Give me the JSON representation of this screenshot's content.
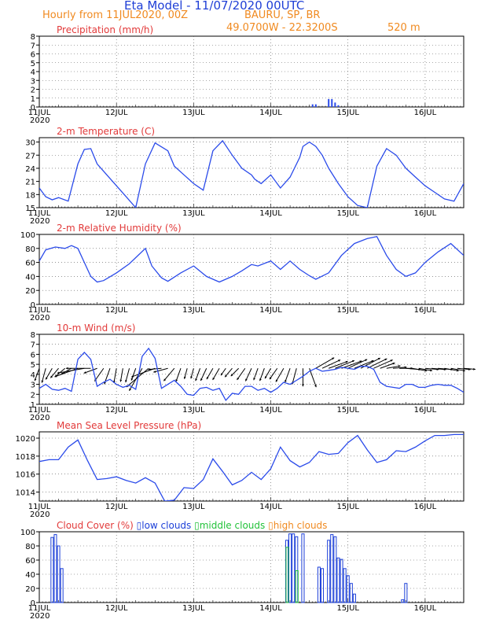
{
  "header": {
    "title": "Eta Model - 11/07/2020 00UTC",
    "subtitle": "Hourly from 11JUL2020, 00Z",
    "station": "BAURU, SP, BR",
    "coords": "49.0700W - 22.3200S",
    "elevation": "520 m"
  },
  "colors": {
    "line": "#2b4bea",
    "title_blue": "#1f3fd6",
    "panel_title": "#e23a3a",
    "orange": "#f08a20",
    "low": "#1c3fd8",
    "middle": "#23c23a",
    "high": "#f08a20"
  },
  "chart_data": [
    {
      "type": "bar",
      "title": "Precipitation (mm/h)",
      "x_ticks": [
        "11JUL",
        "12JUL",
        "13JUL",
        "14JUL",
        "15JUL",
        "16JUL"
      ],
      "x_year": "2020",
      "ylim": [
        0,
        8
      ],
      "yticks": [
        0,
        1,
        2,
        3,
        4,
        5,
        6,
        7,
        8
      ],
      "grid": true,
      "hour": [
        85,
        86,
        90,
        91,
        92,
        93
      ],
      "values": [
        0.3,
        0.3,
        0.9,
        0.9,
        0.5,
        0.2
      ]
    },
    {
      "type": "line",
      "title": "2-m Temperature (C)",
      "x_ticks": [
        "11JUL",
        "12JUL",
        "13JUL",
        "14JUL",
        "15JUL",
        "16JUL"
      ],
      "x_year": "2020",
      "ylim": [
        15,
        31
      ],
      "yticks": [
        15,
        18,
        21,
        24,
        27,
        30
      ],
      "grid": true,
      "hour": [
        0,
        2,
        4,
        6,
        9,
        12,
        14,
        16,
        18,
        21,
        24,
        27,
        30,
        33,
        36,
        40,
        42,
        45,
        48,
        51,
        54,
        57,
        60,
        63,
        66,
        67,
        69,
        72,
        75,
        78,
        81,
        82,
        84,
        86,
        88,
        90,
        93,
        96,
        99,
        102,
        105,
        108,
        111,
        114,
        117,
        120,
        123,
        126,
        129,
        132
      ],
      "values": [
        19.5,
        17.5,
        16.8,
        17.3,
        16.5,
        25,
        28.3,
        28.5,
        25,
        22.5,
        20,
        17.5,
        15,
        25,
        29.8,
        28,
        24.5,
        22.5,
        20.5,
        19,
        28,
        30.3,
        27,
        24,
        22.5,
        21.5,
        20.5,
        22.5,
        19.5,
        22,
        26.5,
        29,
        30,
        29,
        27,
        24,
        20.5,
        17.5,
        15.5,
        15,
        24.5,
        28.5,
        27,
        24,
        22,
        20,
        18.5,
        17,
        16.5,
        20.5
      ]
    },
    {
      "type": "line",
      "title": "2-m Relative Humidity (%)",
      "x_ticks": [
        "11JUL",
        "12JUL",
        "13JUL",
        "14JUL",
        "15JUL",
        "16JUL"
      ],
      "x_year": "2020",
      "ylim": [
        0,
        100
      ],
      "yticks": [
        0,
        20,
        40,
        60,
        80,
        100
      ],
      "grid": true,
      "hour": [
        0,
        2,
        5,
        8,
        10,
        12,
        14,
        16,
        18,
        20,
        24,
        28,
        33,
        35,
        38,
        40,
        44,
        48,
        52,
        56,
        60,
        63,
        66,
        68,
        72,
        75,
        78,
        81,
        84,
        86,
        90,
        94,
        98,
        102,
        105,
        108,
        111,
        114,
        117,
        120,
        124,
        128,
        132
      ],
      "values": [
        62,
        78,
        82,
        80,
        84,
        80,
        60,
        40,
        32,
        34,
        45,
        58,
        80,
        55,
        38,
        33,
        45,
        55,
        40,
        32,
        40,
        48,
        57,
        55,
        62,
        50,
        62,
        50,
        41,
        36,
        45,
        70,
        87,
        94,
        97,
        70,
        50,
        40,
        45,
        60,
        75,
        87,
        70
      ]
    },
    {
      "type": "line",
      "title": "10-m Wind (m/s)",
      "x_ticks": [
        "11JUL",
        "12JUL",
        "13JUL",
        "14JUL",
        "15JUL",
        "16JUL"
      ],
      "x_year": "2020",
      "ylim": [
        1,
        8
      ],
      "yticks": [
        1,
        2,
        3,
        4,
        5,
        6,
        7,
        8
      ],
      "grid": true,
      "arrow_baseline": 4.6,
      "hour": [
        0,
        2,
        4,
        6,
        8,
        10,
        12,
        14,
        16,
        18,
        20,
        22,
        24,
        26,
        28,
        30,
        32,
        34,
        36,
        38,
        40,
        42,
        44,
        46,
        48,
        50,
        52,
        54,
        56,
        58,
        60,
        62,
        64,
        66,
        68,
        70,
        72,
        74,
        76,
        78,
        80,
        82,
        84,
        86,
        88,
        90,
        92,
        94,
        96,
        98,
        100,
        102,
        104,
        106,
        108,
        110,
        112,
        114,
        116,
        118,
        120,
        122,
        124,
        126,
        128,
        130,
        132
      ],
      "values": [
        2.6,
        3.0,
        2.5,
        2.4,
        2.6,
        2.3,
        5.5,
        6.2,
        5.5,
        2.8,
        3.2,
        3.5,
        3.0,
        2.7,
        2.9,
        2.5,
        5.8,
        6.6,
        5.6,
        2.6,
        3.0,
        3.4,
        2.8,
        2.0,
        1.9,
        2.6,
        2.7,
        2.4,
        2.6,
        1.4,
        2.1,
        2.0,
        2.8,
        2.8,
        2.4,
        2.6,
        2.2,
        2.6,
        3.2,
        3.0,
        3.4,
        3.8,
        4.3,
        4.6,
        4.3,
        4.4,
        4.5,
        4.7,
        4.6,
        4.5,
        4.8,
        4.8,
        4.5,
        3.2,
        2.8,
        2.7,
        2.6,
        3.0,
        3.0,
        2.7,
        2.7,
        2.9,
        3.0,
        2.9,
        2.9,
        2.6,
        2.2
      ],
      "arrow_dir_deg": [
        200,
        195,
        210,
        220,
        230,
        240,
        250,
        260,
        270,
        250,
        215,
        200,
        190,
        190,
        195,
        200,
        210,
        230,
        250,
        265,
        255,
        220,
        200,
        195,
        195,
        200,
        205,
        210,
        210,
        215,
        220,
        225,
        215,
        205,
        200,
        200,
        210,
        215,
        210,
        200,
        195,
        180,
        160,
        60,
        65,
        70,
        68,
        70,
        65,
        68,
        62,
        64,
        66,
        70,
        80,
        85,
        90,
        95,
        100,
        100,
        95,
        95,
        95,
        100,
        100,
        95,
        95
      ]
    },
    {
      "type": "line",
      "title": "Mean Sea Level Pressure (hPa)",
      "x_ticks": [
        "11JUL",
        "12JUL",
        "13JUL",
        "14JUL",
        "15JUL",
        "16JUL"
      ],
      "x_year": "2020",
      "ylim": [
        1013,
        1020.7
      ],
      "yticks": [
        1014,
        1016,
        1018,
        1020
      ],
      "grid": true,
      "hour": [
        0,
        3,
        6,
        9,
        12,
        15,
        18,
        21,
        24,
        27,
        30,
        33,
        36,
        39,
        42,
        45,
        48,
        51,
        54,
        57,
        60,
        63,
        66,
        69,
        72,
        75,
        78,
        81,
        84,
        87,
        90,
        93,
        96,
        99,
        102,
        105,
        108,
        111,
        114,
        117,
        120,
        123,
        126,
        129,
        132
      ],
      "values": [
        1017.4,
        1017.6,
        1017.6,
        1019.0,
        1019.8,
        1017.5,
        1015.4,
        1015.5,
        1015.7,
        1015.3,
        1015.0,
        1015.6,
        1015.0,
        1013.0,
        1013.1,
        1014.5,
        1014.4,
        1015.4,
        1017.7,
        1016.3,
        1014.8,
        1015.3,
        1016.2,
        1015.4,
        1016.6,
        1019.0,
        1017.5,
        1016.8,
        1017.3,
        1018.5,
        1018.2,
        1018.3,
        1019.5,
        1020.3,
        1018.7,
        1017.3,
        1017.6,
        1018.6,
        1018.5,
        1019.0,
        1019.7,
        1020.3,
        1020.3,
        1020.4,
        1020.4
      ]
    },
    {
      "type": "bar",
      "title": "Cloud Cover (%)",
      "legend": [
        "low clouds",
        "middle clouds",
        "high clouds"
      ],
      "x_ticks": [
        "11JUL",
        "12JUL",
        "13JUL",
        "14JUL",
        "15JUL",
        "16JUL"
      ],
      "x_year": "2020",
      "ylim": [
        0,
        100
      ],
      "yticks": [
        0,
        20,
        40,
        60,
        80,
        100
      ],
      "grid": true,
      "series": [
        {
          "name": "low clouds",
          "hour": [
            4,
            5,
            6,
            7,
            77,
            78,
            79,
            80,
            82,
            87,
            88,
            90,
            91,
            92,
            93,
            94,
            95,
            96,
            97,
            98,
            113,
            114
          ],
          "values": [
            92,
            96,
            80,
            48,
            88,
            97,
            97,
            93,
            97,
            50,
            48,
            88,
            96,
            93,
            63,
            61,
            48,
            38,
            27,
            12,
            4,
            27
          ]
        },
        {
          "name": "middle clouds",
          "hour": [
            77,
            80
          ],
          "values": [
            78,
            45
          ]
        },
        {
          "name": "high clouds",
          "hour": [],
          "values": []
        }
      ]
    }
  ]
}
